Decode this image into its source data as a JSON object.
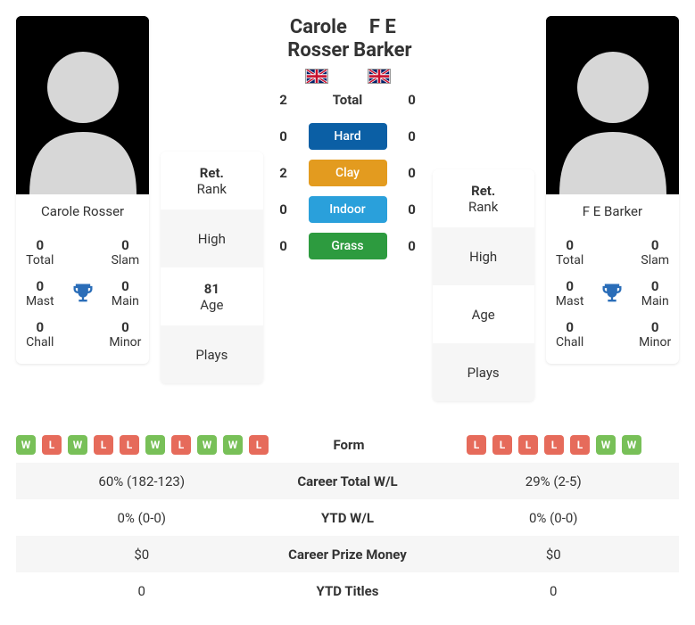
{
  "colors": {
    "win": "#78c058",
    "loss": "#e66b5b",
    "hard": "#0b5fa5",
    "clay": "#e39b1f",
    "indoor": "#2aa0db",
    "grass": "#2d9b3f",
    "trophy": "#2a6db8",
    "silhouette": "#d7d7d7"
  },
  "h2h": {
    "rows": [
      {
        "left": "2",
        "label": "Total",
        "right": "0",
        "bg": null
      },
      {
        "left": "0",
        "label": "Hard",
        "right": "0",
        "bg": "#0b5fa5"
      },
      {
        "left": "2",
        "label": "Clay",
        "right": "0",
        "bg": "#e39b1f"
      },
      {
        "left": "0",
        "label": "Indoor",
        "right": "0",
        "bg": "#2aa0db"
      },
      {
        "left": "0",
        "label": "Grass",
        "right": "0",
        "bg": "#2d9b3f"
      }
    ]
  },
  "player1": {
    "name_full": "Carole Rosser",
    "rank_value": "Ret.",
    "rank_label": "Rank",
    "high_value": "",
    "high_label": "High",
    "age_value": "81",
    "age_label": "Age",
    "plays_value": "",
    "plays_label": "Plays",
    "titles": {
      "total_n": "0",
      "total_l": "Total",
      "slam_n": "0",
      "slam_l": "Slam",
      "mast_n": "0",
      "mast_l": "Mast",
      "main_n": "0",
      "main_l": "Main",
      "chall_n": "0",
      "chall_l": "Chall",
      "minor_n": "0",
      "minor_l": "Minor"
    },
    "form": [
      "W",
      "L",
      "W",
      "L",
      "L",
      "W",
      "L",
      "W",
      "W",
      "L"
    ],
    "career_wl": "60% (182-123)",
    "ytd_wl": "0% (0-0)",
    "prize": "$0",
    "ytd_titles": "0",
    "flag": "GB"
  },
  "player2": {
    "name_full": "F E Barker",
    "rank_value": "Ret.",
    "rank_label": "Rank",
    "high_value": "",
    "high_label": "High",
    "age_value": "",
    "age_label": "Age",
    "plays_value": "",
    "plays_label": "Plays",
    "titles": {
      "total_n": "0",
      "total_l": "Total",
      "slam_n": "0",
      "slam_l": "Slam",
      "mast_n": "0",
      "mast_l": "Mast",
      "main_n": "0",
      "main_l": "Main",
      "chall_n": "0",
      "chall_l": "Chall",
      "minor_n": "0",
      "minor_l": "Minor"
    },
    "form": [
      "L",
      "L",
      "L",
      "L",
      "L",
      "W",
      "W"
    ],
    "career_wl": "29% (2-5)",
    "ytd_wl": "0% (0-0)",
    "prize": "$0",
    "ytd_titles": "0",
    "flag": "GB"
  },
  "labels": {
    "form": "Form",
    "career_wl": "Career Total W/L",
    "ytd_wl": "YTD W/L",
    "prize": "Career Prize Money",
    "ytd_titles": "YTD Titles"
  }
}
